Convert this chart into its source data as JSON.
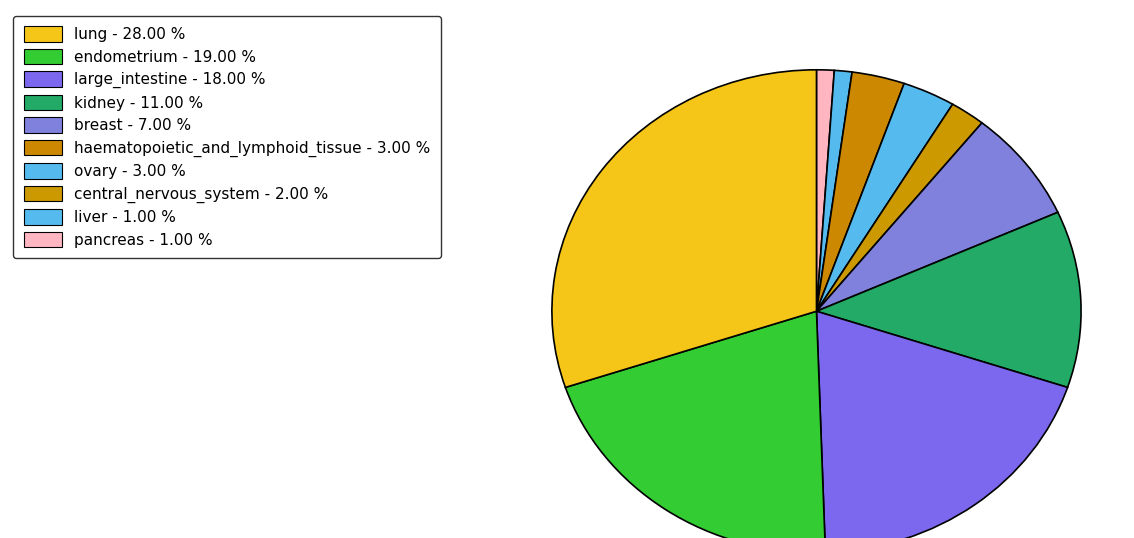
{
  "legend_labels": [
    "lung - 28.00 %",
    "endometrium - 19.00 %",
    "large_intestine - 18.00 %",
    "kidney - 11.00 %",
    "breast - 7.00 %",
    "haematopoietic_and_lymphoid_tissue - 3.00 %",
    "ovary - 3.00 %",
    "central_nervous_system - 2.00 %",
    "liver - 1.00 %",
    "pancreas - 1.00 %"
  ],
  "legend_colors": [
    "#F5C518",
    "#33CC33",
    "#7B68EE",
    "#22AA66",
    "#8080DD",
    "#CC8800",
    "#55BBEE",
    "#CC9900",
    "#55BBEE",
    "#FFB6C1"
  ],
  "pie_values": [
    1,
    1,
    3,
    3,
    2,
    7,
    11,
    18,
    19,
    28
  ],
  "pie_colors": [
    "#FFB6C1",
    "#55BBEE",
    "#CC8800",
    "#55BBEE",
    "#CC9900",
    "#8080DD",
    "#22AA66",
    "#7B68EE",
    "#33CC33",
    "#F5C518"
  ],
  "figsize": [
    11.34,
    5.38
  ],
  "dpi": 100
}
